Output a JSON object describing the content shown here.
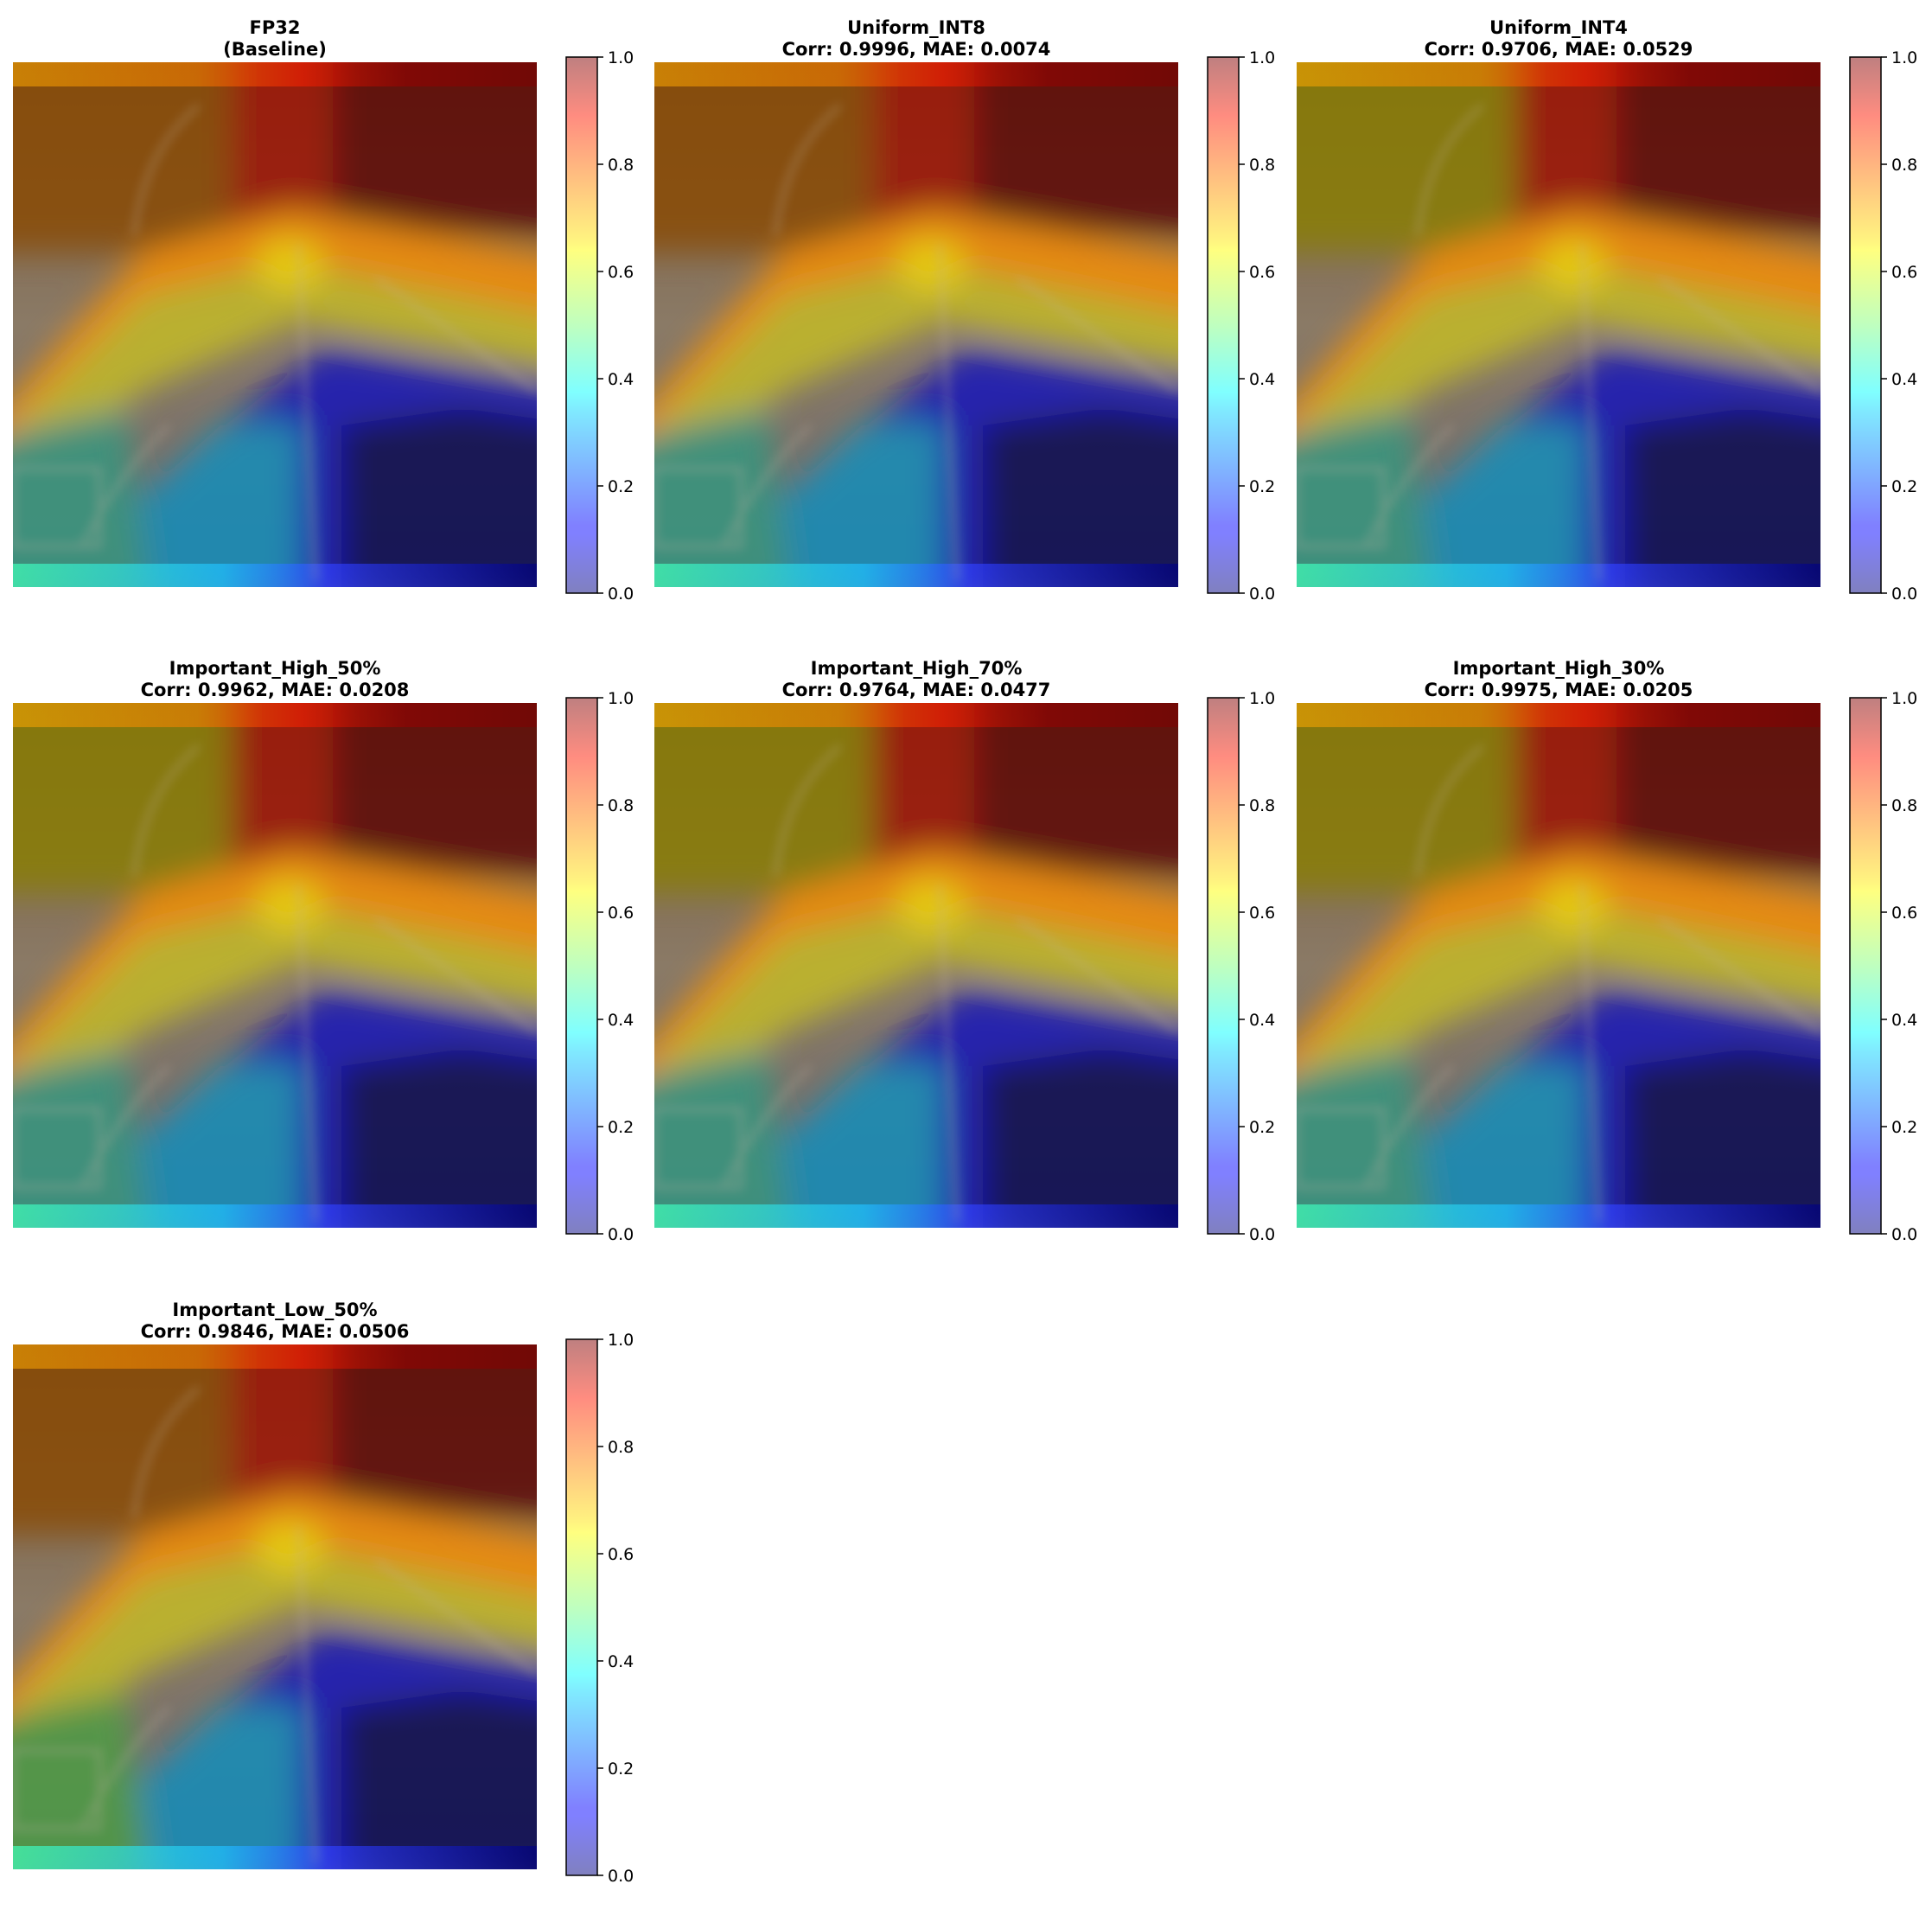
{
  "figure": {
    "layout": "3x3 grid",
    "panels": [
      {
        "title_line1": "FP32",
        "title_line2": "(Baseline)"
      },
      {
        "title_line1": "Uniform_INT8",
        "title_line2": "Corr: 0.9996, MAE: 0.0074"
      },
      {
        "title_line1": "Uniform_INT4",
        "title_line2": "Corr: 0.9706, MAE: 0.0529"
      },
      {
        "title_line1": "Important_High_50%",
        "title_line2": "Corr: 0.9962, MAE: 0.0208"
      },
      {
        "title_line1": "Important_High_70%",
        "title_line2": "Corr: 0.9764, MAE: 0.0477"
      },
      {
        "title_line1": "Important_High_30%",
        "title_line2": "Corr: 0.9975, MAE: 0.0205"
      },
      {
        "title_line1": "Important_Low_50%",
        "title_line2": "Corr: 0.9846, MAE: 0.0506"
      }
    ]
  },
  "chart_data": {
    "type": "heatmap",
    "colormap": "jet",
    "overlay_alpha": 0.5,
    "axes_visible": false,
    "colorbar": {
      "range": [
        0.0,
        1.0
      ],
      "ticks": [
        0.0,
        0.2,
        0.4,
        0.6,
        0.8,
        1.0
      ],
      "tick_labels": [
        "0.0",
        "0.2",
        "0.4",
        "0.6",
        "0.8",
        "1.0"
      ]
    },
    "heatmaps": [
      {
        "name": "FP32",
        "corr": null,
        "mae": null
      },
      {
        "name": "Uniform_INT8",
        "corr": 0.9996,
        "mae": 0.0074
      },
      {
        "name": "Uniform_INT4",
        "corr": 0.9706,
        "mae": 0.0529
      },
      {
        "name": "Important_High_50%",
        "corr": 0.9962,
        "mae": 0.0208
      },
      {
        "name": "Important_High_70%",
        "corr": 0.9764,
        "mae": 0.0477
      },
      {
        "name": "Important_High_30%",
        "corr": 0.9975,
        "mae": 0.0205
      },
      {
        "name": "Important_Low_50%",
        "corr": 0.9846,
        "mae": 0.0506
      }
    ]
  }
}
